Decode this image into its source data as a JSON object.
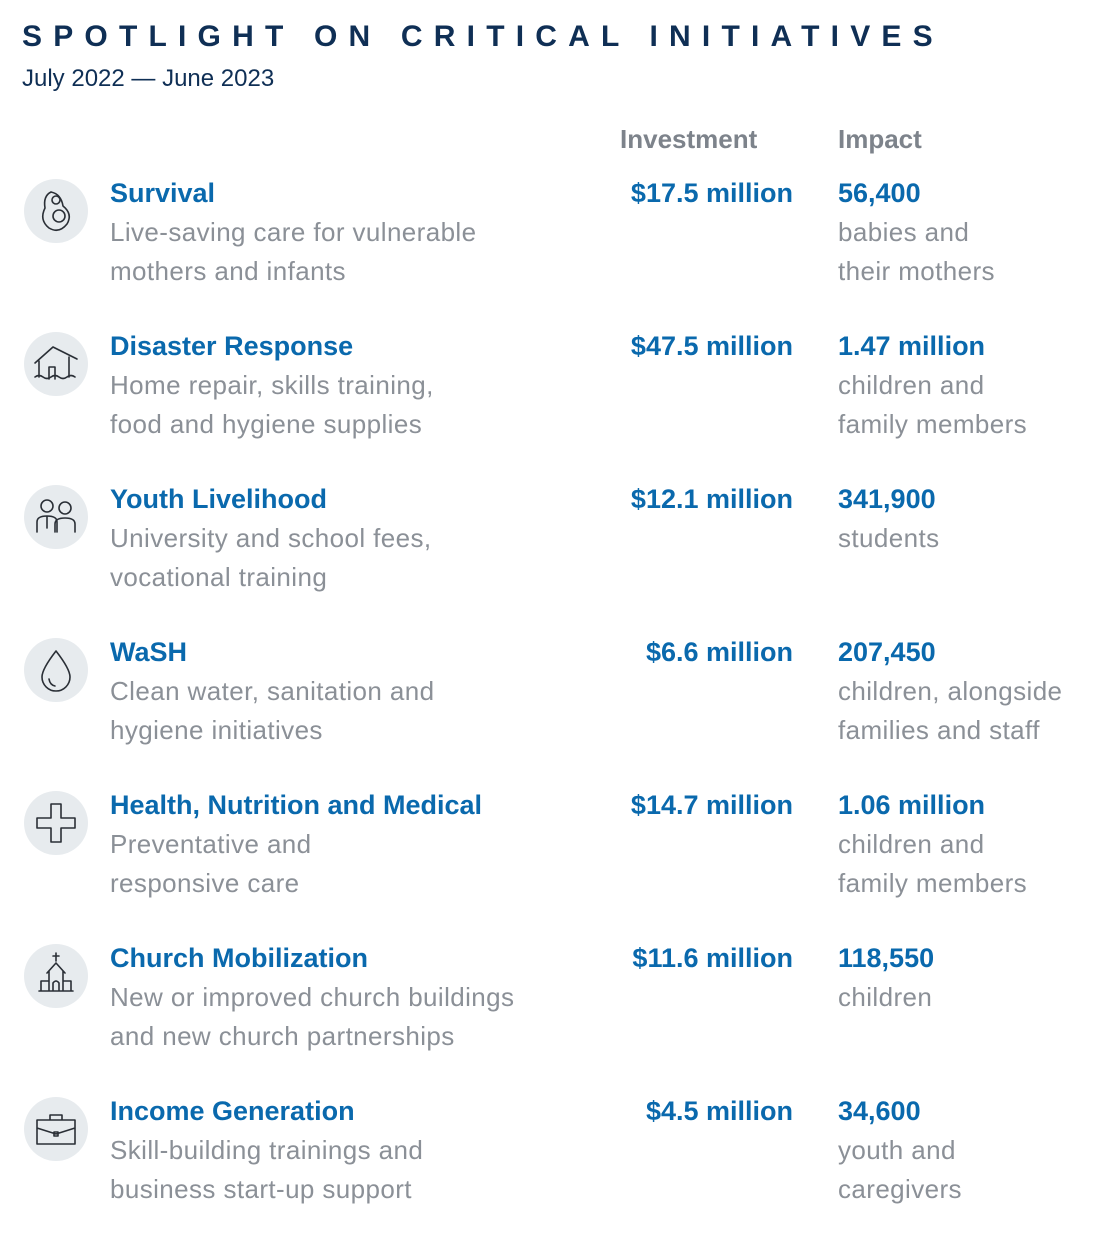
{
  "header": {
    "title": "SPOTLIGHT ON CRITICAL INITIATIVES",
    "subtitle": "July 2022 — June 2023"
  },
  "columns": {
    "investment": "Investment",
    "impact": "Impact"
  },
  "rows": [
    {
      "name": "Survival",
      "description": [
        "Live-saving care for vulnerable",
        "mothers and infants"
      ],
      "investment": "$17.5 million",
      "impact_value": "56,400",
      "impact_text": [
        "babies and",
        "their mothers"
      ]
    },
    {
      "name": "Disaster Response",
      "description": [
        "Home repair, skills training,",
        "food and hygiene supplies"
      ],
      "investment": "$47.5 million",
      "impact_value": "1.47 million",
      "impact_text": [
        "children and",
        "family members"
      ]
    },
    {
      "name": "Youth Livelihood",
      "description": [
        "University and school fees,",
        "vocational training"
      ],
      "investment": "$12.1 million",
      "impact_value": "341,900",
      "impact_text": [
        "students"
      ]
    },
    {
      "name": "WaSH",
      "description": [
        "Clean water, sanitation and",
        "hygiene initiatives"
      ],
      "investment": "$6.6 million",
      "impact_value": "207,450",
      "impact_text": [
        "children, alongside",
        "families and staff"
      ]
    },
    {
      "name": "Health, Nutrition and Medical",
      "description": [
        "Preventative and",
        "responsive care"
      ],
      "investment": "$14.7 million",
      "impact_value": "1.06 million",
      "impact_text": [
        "children and",
        "family members"
      ]
    },
    {
      "name": "Church Mobilization",
      "description": [
        "New or improved church buildings",
        "and new church partnerships"
      ],
      "investment": "$11.6 million",
      "impact_value": "118,550",
      "impact_text": [
        "children"
      ]
    },
    {
      "name": "Income Generation",
      "description": [
        "Skill-building trainings and",
        "business start-up support"
      ],
      "investment": "$4.5 million",
      "impact_value": "34,600",
      "impact_text": [
        "youth and",
        "caregivers"
      ]
    }
  ]
}
